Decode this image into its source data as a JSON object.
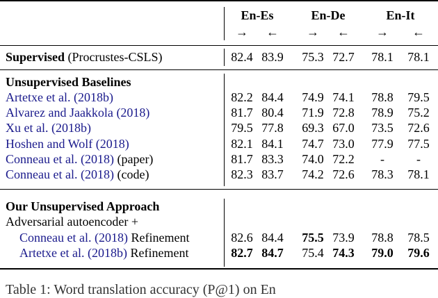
{
  "header": {
    "groups": [
      "En-Es",
      "En-De",
      "En-It"
    ],
    "directions": [
      "→",
      "←",
      "→",
      "←",
      "→",
      "←"
    ]
  },
  "supervised": {
    "name": "Supervised",
    "detail": "(Procrustes-CSLS)",
    "values": [
      "82.4",
      "83.9",
      "75.3",
      "72.7",
      "78.1",
      "78.1"
    ]
  },
  "baselines": {
    "title": "Unsupervised Baselines",
    "rows": [
      {
        "author": "Artetxe et al.",
        "year": "(2018b)",
        "suffix": "",
        "values": [
          "82.2",
          "84.4",
          "74.9",
          "74.1",
          "78.8",
          "79.5"
        ]
      },
      {
        "author": "Alvarez and Jaakkola",
        "year": "(2018)",
        "suffix": "",
        "values": [
          "81.7",
          "80.4",
          "71.9",
          "72.8",
          "78.9",
          "75.2"
        ]
      },
      {
        "author": "Xu et al.",
        "year": "(2018b)",
        "suffix": "",
        "values": [
          "79.5",
          "77.8",
          "69.3",
          "67.0",
          "73.5",
          "72.6"
        ]
      },
      {
        "author": "Hoshen and Wolf",
        "year": "(2018)",
        "suffix": "",
        "values": [
          "82.1",
          "84.1",
          "74.7",
          "73.0",
          "77.9",
          "77.5"
        ]
      },
      {
        "author": "Conneau et al.",
        "year": "(2018)",
        "suffix": "(paper)",
        "values": [
          "81.7",
          "83.3",
          "74.0",
          "72.2",
          "-",
          "-"
        ]
      },
      {
        "author": "Conneau et al.",
        "year": "(2018)",
        "suffix": "(code)",
        "values": [
          "82.3",
          "83.7",
          "74.2",
          "72.6",
          "78.3",
          "78.1"
        ]
      }
    ]
  },
  "ours": {
    "title": "Our Unsupervised Approach",
    "subtitle": "Adversarial autoencoder +",
    "rows": [
      {
        "author": "Conneau et al.",
        "year": "(2018)",
        "suffix": "Refinement",
        "values": [
          "82.6",
          "84.4",
          "75.5",
          "73.9",
          "78.8",
          "78.5"
        ],
        "bold": [
          false,
          false,
          true,
          false,
          false,
          false
        ]
      },
      {
        "author": "Artetxe et al.",
        "year": "(2018b)",
        "suffix": "Refinement",
        "values": [
          "82.7",
          "84.7",
          "75.4",
          "74.3",
          "79.0",
          "79.6"
        ],
        "bold": [
          true,
          true,
          false,
          true,
          true,
          true
        ]
      }
    ]
  },
  "caption": "Table 1: Word translation accuracy (P@1) on En"
}
